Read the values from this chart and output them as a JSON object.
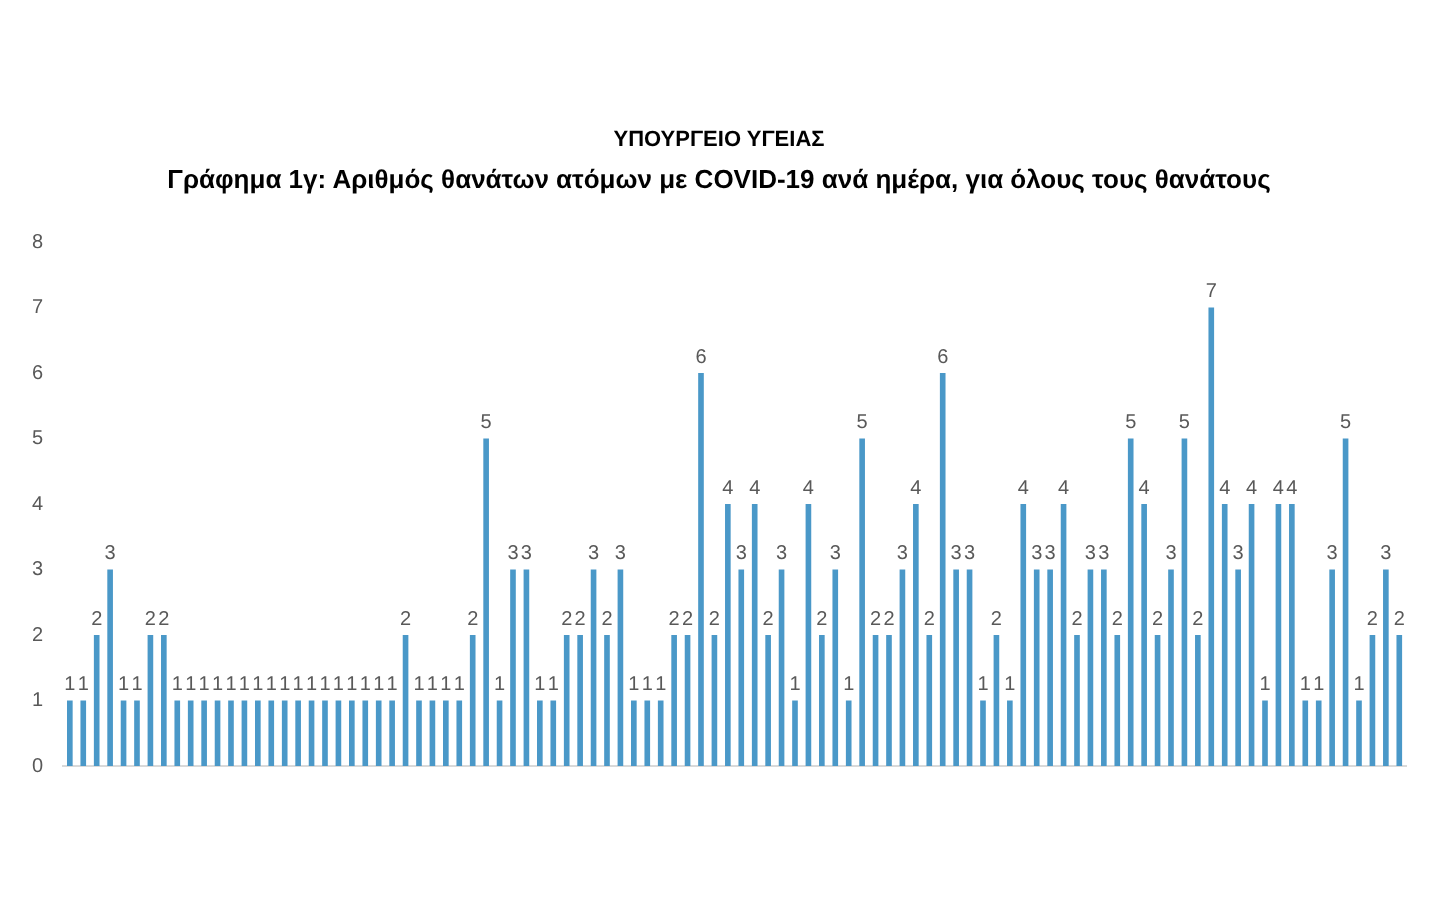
{
  "chart_data": {
    "type": "bar",
    "title": "Γράφημα 1γ: Αριθμός θανάτων ατόμων με COVID-19 ανά ημέρα, για όλους τους θανάτους",
    "annotations": [
      "ΥΠΟΥΡΓΕΙΟ ΥΓΕΙΑΣ"
    ],
    "categories": [
      null,
      null,
      null,
      null,
      null,
      null,
      null,
      null,
      null,
      null,
      null,
      null,
      null,
      null,
      null,
      null,
      null,
      null,
      null,
      null,
      null,
      null,
      null,
      null,
      null,
      null,
      null,
      null,
      null,
      null,
      null,
      null,
      null,
      null,
      null,
      null,
      null,
      null,
      null,
      null,
      null,
      null,
      null,
      null,
      null,
      null,
      null,
      null,
      null,
      null,
      null,
      null,
      null,
      null,
      null,
      null,
      null,
      null,
      null,
      null,
      null,
      null,
      null,
      null,
      null,
      null,
      null,
      null,
      null,
      null,
      null,
      null,
      null,
      null,
      null,
      null,
      null,
      null,
      null,
      null,
      null,
      null,
      null,
      null,
      null,
      null,
      null,
      null,
      null,
      null,
      null,
      null,
      null,
      null,
      null,
      null,
      null,
      null,
      null,
      null
    ],
    "values": [
      1,
      1,
      2,
      3,
      1,
      1,
      2,
      2,
      1,
      1,
      1,
      1,
      1,
      1,
      1,
      1,
      1,
      1,
      1,
      1,
      1,
      1,
      1,
      1,
      1,
      2,
      1,
      1,
      1,
      1,
      2,
      5,
      1,
      3,
      3,
      1,
      1,
      2,
      2,
      3,
      2,
      3,
      1,
      1,
      1,
      2,
      2,
      6,
      2,
      4,
      3,
      4,
      2,
      3,
      1,
      4,
      2,
      3,
      1,
      5,
      2,
      2,
      3,
      4,
      2,
      6,
      3,
      3,
      1,
      2,
      1,
      4,
      3,
      3,
      4,
      2,
      3,
      3,
      2,
      5,
      4,
      2,
      3,
      5,
      2,
      7,
      4,
      3,
      4,
      1,
      4,
      4,
      1,
      1,
      3,
      5,
      1,
      2,
      3,
      2
    ],
    "color": "#4a98c8",
    "ylim": [
      0,
      8
    ],
    "yticks": [
      0,
      1,
      2,
      3,
      4,
      5,
      6,
      7,
      8
    ],
    "grid": false,
    "data_labels": true
  }
}
